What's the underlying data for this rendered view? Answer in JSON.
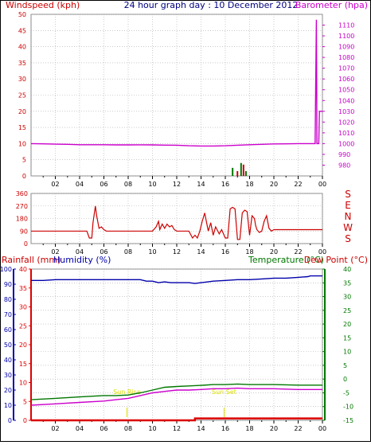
{
  "chart_data": [
    {
      "type": "line",
      "title": "24 hour graph day : 10 December 2012",
      "left_axis_label": "Windspeed (kph)",
      "right_axis_label": "Barometer (hpa)",
      "x_ticks": [
        "02",
        "04",
        "06",
        "08",
        "10",
        "12",
        "14",
        "16",
        "18",
        "20",
        "22",
        "00"
      ],
      "x_range": [
        0,
        24
      ],
      "left_ylim": [
        0,
        50
      ],
      "left_ticks": [
        0,
        5,
        10,
        15,
        20,
        25,
        30,
        35,
        40,
        45,
        50
      ],
      "right_ylim": [
        970,
        1120
      ],
      "right_ticks": [
        980,
        990,
        1000,
        1010,
        1020,
        1030,
        1040,
        1050,
        1060,
        1070,
        1080,
        1090,
        1100,
        1110
      ],
      "grid": true,
      "colors": {
        "barometer": "#cc00cc",
        "wind": "#cc0000",
        "gust": "#007700",
        "axis_left": "#cc0000",
        "axis_right": "#cc00cc",
        "title": "#000080"
      },
      "series": [
        {
          "key": "barometer",
          "x": [
            0,
            1,
            2,
            3,
            4,
            5,
            6,
            7,
            8,
            9,
            10,
            11,
            12,
            13,
            14,
            15,
            16,
            17,
            18,
            19,
            20,
            21,
            22,
            23,
            23.4,
            23.5,
            23.55,
            23.7,
            23.75,
            24
          ],
          "values": [
            1000,
            999.8,
            999.5,
            999.3,
            999.0,
            999.0,
            999.0,
            998.8,
            998.8,
            998.9,
            998.8,
            998.6,
            998.5,
            998.0,
            997.8,
            997.8,
            998.0,
            998.5,
            999.0,
            999.3,
            999.7,
            999.8,
            1000,
            1000,
            1000,
            1115,
            1000,
            1000,
            1030,
            1030
          ]
        },
        {
          "key": "wind",
          "spikes": [
            [
              16.6,
              2.5
            ],
            [
              17.0,
              1.5
            ],
            [
              17.3,
              4.0
            ],
            [
              17.5,
              3.5
            ],
            [
              17.7,
              1.5
            ]
          ]
        }
      ]
    },
    {
      "type": "line",
      "right_letters": [
        "S",
        "E",
        "N",
        "W",
        "S"
      ],
      "x_ticks": [
        "02",
        "04",
        "06",
        "08",
        "10",
        "12",
        "14",
        "16",
        "18",
        "20",
        "22",
        "00"
      ],
      "x_range": [
        0,
        24
      ],
      "ylim": [
        0,
        360
      ],
      "ticks": [
        0,
        90,
        180,
        270,
        360
      ],
      "grid": true,
      "colors": {
        "direction": "#cc0000",
        "axis": "#cc0000"
      },
      "series": [
        {
          "key": "direction",
          "x": [
            0,
            4.6,
            4.8,
            5.0,
            5.1,
            5.3,
            5.4,
            5.6,
            5.8,
            6.0,
            6.2,
            6.6,
            8.0,
            10.0,
            10.3,
            10.5,
            10.6,
            10.8,
            11.0,
            11.2,
            11.4,
            11.6,
            11.8,
            12.0,
            13.0,
            13.3,
            13.5,
            13.7,
            13.9,
            14.1,
            14.3,
            14.6,
            14.8,
            15.0,
            15.2,
            15.5,
            15.7,
            16.0,
            16.2,
            16.4,
            16.6,
            16.8,
            17.0,
            17.2,
            17.4,
            17.6,
            17.8,
            18.0,
            18.2,
            18.4,
            18.5,
            18.6,
            18.8,
            19.0,
            19.2,
            19.4,
            19.6,
            19.8,
            20.0,
            24
          ],
          "values": [
            90,
            90,
            40,
            40,
            150,
            270,
            200,
            110,
            120,
            100,
            90,
            90,
            90,
            90,
            120,
            160,
            100,
            140,
            110,
            140,
            120,
            130,
            100,
            90,
            90,
            40,
            60,
            40,
            90,
            160,
            220,
            90,
            150,
            60,
            120,
            70,
            100,
            40,
            40,
            250,
            260,
            250,
            30,
            30,
            220,
            240,
            230,
            60,
            200,
            180,
            130,
            100,
            80,
            90,
            160,
            200,
            110,
            90,
            100,
            100
          ]
        }
      ]
    },
    {
      "type": "line",
      "labels": {
        "rainfall": "Rainfall (mm)",
        "humidity": "Humidity (%)",
        "temperature": "Temperature (°C)",
        "dew_point": "Dew Point (°C)"
      },
      "annotations": [
        "Sun Rise",
        "Sun Set"
      ],
      "annotation_x": [
        7.9,
        15.9
      ],
      "x_ticks": [
        "02",
        "04",
        "06",
        "08",
        "10",
        "12",
        "14",
        "16",
        "18",
        "20",
        "22",
        "00"
      ],
      "x_range": [
        0,
        24
      ],
      "rain_ylim": [
        0,
        40
      ],
      "rain_ticks": [
        0,
        5,
        10,
        15,
        20,
        25,
        30,
        35,
        40
      ],
      "humidity_ylim": [
        0,
        100
      ],
      "humidity_ticks": [
        0,
        10,
        20,
        30,
        40,
        50,
        60,
        70,
        80,
        90,
        100
      ],
      "temp_ylim": [
        -15,
        40
      ],
      "temp_ticks": [
        -15,
        -10,
        -5,
        0,
        5,
        10,
        15,
        20,
        25,
        30,
        35,
        40
      ],
      "grid": true,
      "colors": {
        "rainfall": "#dd0000",
        "humidity": "#0000aa",
        "temperature": "#007700",
        "dew_point": "#cc00cc",
        "annotation": "#dddd00",
        "rain_axis": "#dd0000",
        "humidity_axis": "#0000aa",
        "temp_axis": "#007700"
      },
      "series": [
        {
          "key": "humidity",
          "x": [
            0,
            1,
            2,
            3,
            4,
            5,
            6,
            7,
            8,
            9,
            9.5,
            10,
            10.5,
            11,
            11.5,
            12,
            13,
            13.5,
            14,
            15,
            16,
            17,
            18,
            19,
            20,
            21,
            22,
            22.8,
            23,
            24
          ],
          "values": [
            92.5,
            92.5,
            93.0,
            93.0,
            93.0,
            93.0,
            93.0,
            93.0,
            93.0,
            93.0,
            92.0,
            92.0,
            91.0,
            91.5,
            91.0,
            91.0,
            91.0,
            90.5,
            91.0,
            92.0,
            92.5,
            93.0,
            93.0,
            93.5,
            94.0,
            94.0,
            94.5,
            95.0,
            95.5,
            95.5
          ]
        },
        {
          "key": "temperature",
          "x": [
            0,
            2,
            4,
            6,
            7,
            8,
            9,
            10,
            11,
            12,
            13,
            14,
            15,
            16,
            17,
            18,
            19,
            20,
            22,
            24
          ],
          "values": [
            -7.5,
            -7.0,
            -6.5,
            -6.0,
            -6.0,
            -5.8,
            -5.0,
            -4.0,
            -3.0,
            -2.7,
            -2.5,
            -2.3,
            -2.0,
            -2.0,
            -1.8,
            -2.0,
            -2.0,
            -2.0,
            -2.2,
            -2.2
          ]
        },
        {
          "key": "dew_point",
          "x": [
            0,
            2,
            4,
            6,
            7,
            8,
            9,
            10,
            11,
            12,
            13,
            14,
            15,
            16,
            17,
            18,
            19,
            20,
            22,
            24
          ],
          "values": [
            -9.5,
            -9.0,
            -8.5,
            -8.0,
            -7.5,
            -7.0,
            -6.0,
            -5.0,
            -4.5,
            -4.0,
            -4.0,
            -3.8,
            -3.5,
            -3.5,
            -3.3,
            -3.5,
            -3.5,
            -3.5,
            -3.8,
            -3.8
          ]
        },
        {
          "key": "rainfall",
          "x": [
            0,
            13.5,
            13.5,
            24
          ],
          "values": [
            0,
            0,
            0.5,
            0.5
          ]
        }
      ]
    }
  ]
}
